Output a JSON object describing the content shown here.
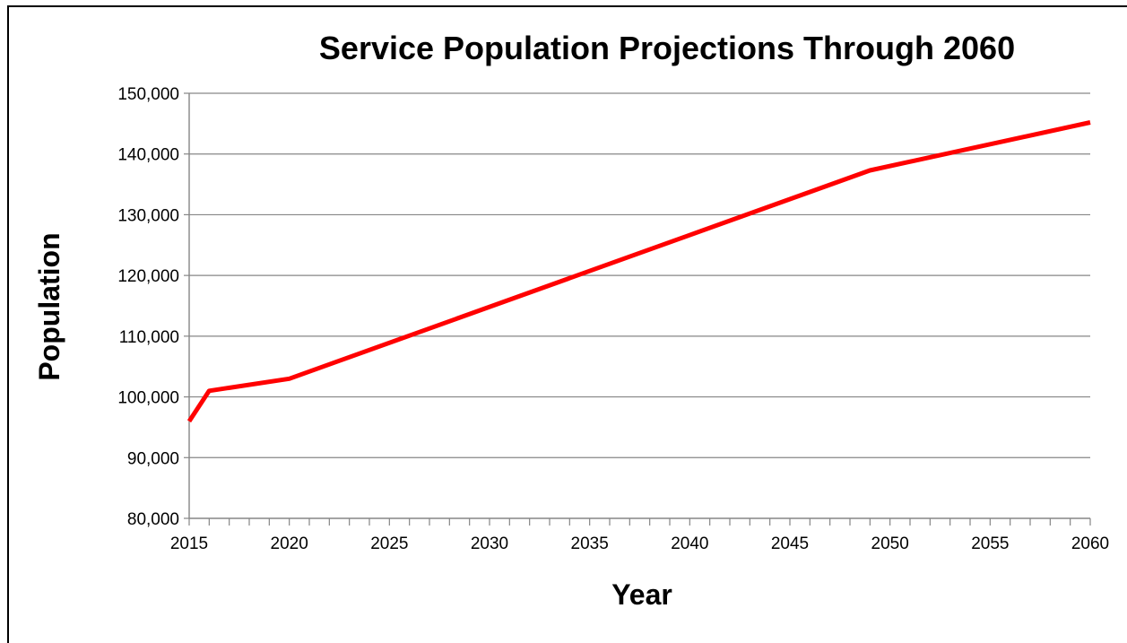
{
  "chart_data": {
    "type": "line",
    "title": "Service Population Projections Through 2060",
    "xlabel": "Year",
    "ylabel": "Population",
    "xlim": [
      2015,
      2060
    ],
    "ylim": [
      80000,
      150000
    ],
    "x_ticks": [
      2015,
      2020,
      2025,
      2030,
      2035,
      2040,
      2045,
      2050,
      2055,
      2060
    ],
    "x_tick_labels": [
      "2015",
      "2020",
      "2025",
      "2030",
      "2035",
      "2040",
      "2045",
      "2050",
      "2055",
      "2060"
    ],
    "x_minor_tick_step": 1,
    "y_ticks": [
      80000,
      90000,
      100000,
      110000,
      120000,
      130000,
      140000,
      150000
    ],
    "y_tick_labels": [
      "80,000",
      "90,000",
      "100,000",
      "110,000",
      "120,000",
      "130,000",
      "140,000",
      "150,000"
    ],
    "grid": true,
    "legend": false,
    "series": [
      {
        "color": "#ff0000",
        "x": [
          2015,
          2016,
          2020,
          2049,
          2060
        ],
        "y": [
          96000,
          101000,
          103000,
          137300,
          145200
        ]
      }
    ]
  }
}
